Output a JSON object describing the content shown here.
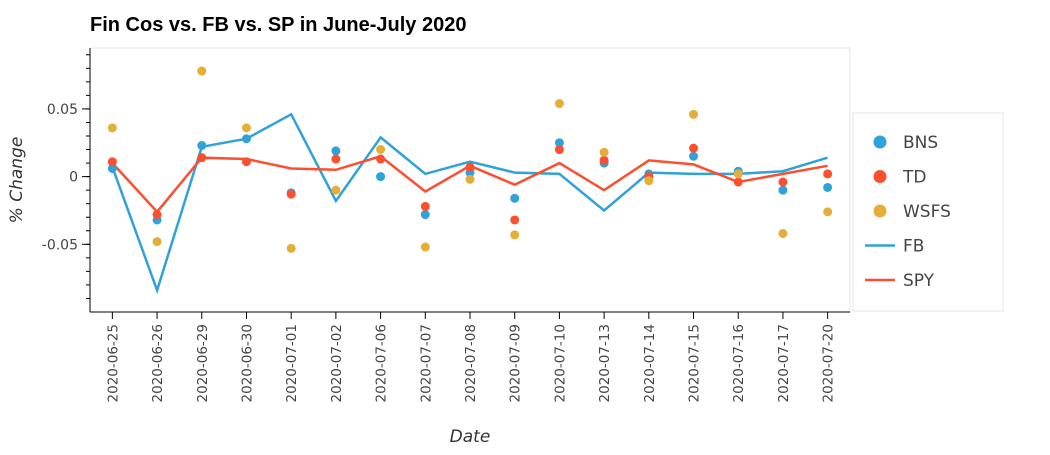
{
  "chart_data": {
    "type": "scatter",
    "title": "Fin Cos vs. FB vs. SP in June-July 2020",
    "xlabel": "Date",
    "ylabel": "% Change",
    "categories": [
      "2020-06-25",
      "2020-06-26",
      "2020-06-29",
      "2020-06-30",
      "2020-07-01",
      "2020-07-02",
      "2020-07-06",
      "2020-07-07",
      "2020-07-08",
      "2020-07-09",
      "2020-07-10",
      "2020-07-13",
      "2020-07-14",
      "2020-07-15",
      "2020-07-16",
      "2020-07-17",
      "2020-07-20"
    ],
    "ylim": [
      -0.1,
      0.095
    ],
    "y_ticks": [
      -0.05,
      0,
      0.05
    ],
    "y_tick_labels": [
      "-0.05",
      "0",
      "0.05"
    ],
    "grid": false,
    "legend_position": "right",
    "series": [
      {
        "name": "BNS",
        "kind": "scatter",
        "color": "#30a2da",
        "values": [
          0.006,
          -0.032,
          0.023,
          0.028,
          -0.012,
          0.019,
          0.0,
          -0.028,
          0.003,
          -0.016,
          0.025,
          0.01,
          0.002,
          0.015,
          0.004,
          -0.01,
          -0.008
        ]
      },
      {
        "name": "TD",
        "kind": "scatter",
        "color": "#fc4f30",
        "values": [
          0.011,
          -0.028,
          0.014,
          0.011,
          -0.013,
          0.013,
          0.013,
          -0.022,
          0.007,
          -0.032,
          0.02,
          0.012,
          0.0,
          0.021,
          -0.004,
          -0.004,
          0.002
        ]
      },
      {
        "name": "WSFS",
        "kind": "scatter",
        "color": "#e5ae38",
        "values": [
          0.036,
          -0.048,
          0.078,
          0.036,
          -0.053,
          -0.01,
          0.02,
          -0.052,
          -0.002,
          -0.043,
          0.054,
          0.018,
          -0.003,
          0.046,
          0.002,
          -0.042,
          -0.026
        ]
      },
      {
        "name": "FB",
        "kind": "line",
        "color": "#30a2da",
        "values": [
          0.007,
          -0.084,
          0.022,
          0.028,
          0.046,
          -0.018,
          0.029,
          0.002,
          0.011,
          0.003,
          0.002,
          -0.025,
          0.003,
          0.002,
          0.002,
          0.004,
          0.014
        ]
      },
      {
        "name": "SPY",
        "kind": "line",
        "color": "#fc4f30",
        "values": [
          0.01,
          -0.026,
          0.014,
          0.013,
          0.006,
          0.005,
          0.015,
          -0.011,
          0.008,
          -0.006,
          0.01,
          -0.01,
          0.012,
          0.009,
          -0.004,
          0.002,
          0.008
        ]
      }
    ]
  }
}
